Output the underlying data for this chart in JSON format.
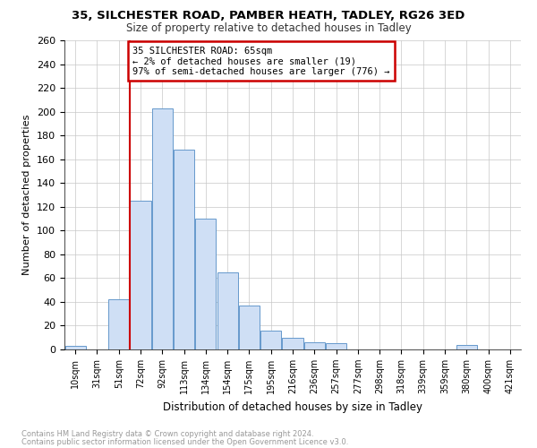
{
  "title1": "35, SILCHESTER ROAD, PAMBER HEATH, TADLEY, RG26 3ED",
  "title2": "Size of property relative to detached houses in Tadley",
  "xlabel": "Distribution of detached houses by size in Tadley",
  "ylabel": "Number of detached properties",
  "categories": [
    "10sqm",
    "31sqm",
    "51sqm",
    "72sqm",
    "92sqm",
    "113sqm",
    "134sqm",
    "154sqm",
    "175sqm",
    "195sqm",
    "216sqm",
    "236sqm",
    "257sqm",
    "277sqm",
    "298sqm",
    "318sqm",
    "339sqm",
    "359sqm",
    "380sqm",
    "400sqm",
    "421sqm"
  ],
  "values": [
    3,
    0,
    42,
    125,
    203,
    168,
    110,
    65,
    37,
    16,
    10,
    6,
    5,
    0,
    0,
    0,
    0,
    0,
    4,
    0,
    0
  ],
  "bar_color": "#cfdff5",
  "bar_edge_color": "#6699cc",
  "red_line_index": 3,
  "annotation_title": "35 SILCHESTER ROAD: 65sqm",
  "annotation_line1": "← 2% of detached houses are smaller (19)",
  "annotation_line2": "97% of semi-detached houses are larger (776) →",
  "annotation_box_color": "#ffffff",
  "annotation_box_edge": "#cc0000",
  "red_line_color": "#cc0000",
  "ylim_max": 260,
  "yticks": [
    0,
    20,
    40,
    60,
    80,
    100,
    120,
    140,
    160,
    180,
    200,
    220,
    240,
    260
  ],
  "footer1": "Contains HM Land Registry data © Crown copyright and database right 2024.",
  "footer2": "Contains public sector information licensed under the Open Government Licence v3.0.",
  "bg_color": "#ffffff",
  "grid_color": "#c8c8c8"
}
